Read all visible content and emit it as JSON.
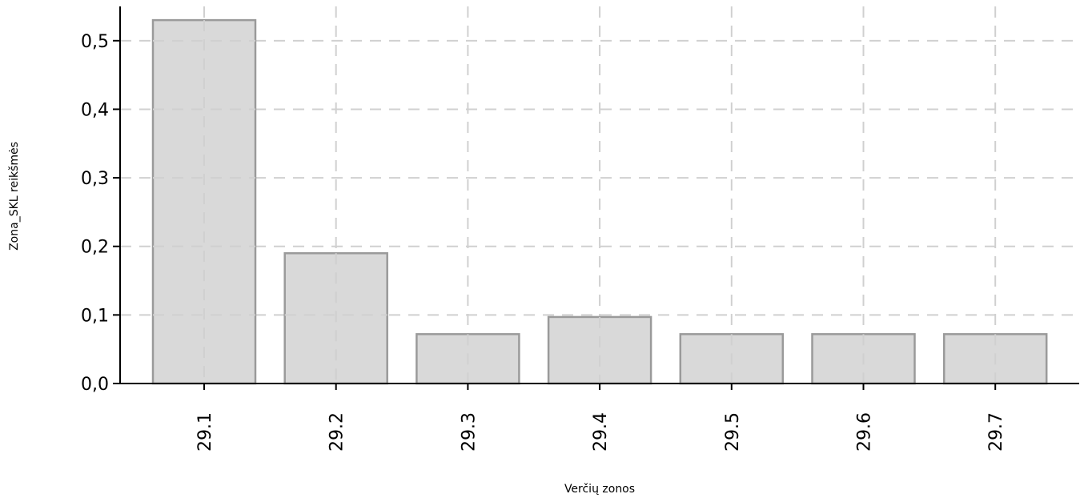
{
  "chart_data": {
    "type": "bar",
    "title": "",
    "xlabel": "Verčių zonos",
    "ylabel": "Zona_SKL reikšmės",
    "categories": [
      "29.1",
      "29.2",
      "29.3",
      "29.4",
      "29.5",
      "29.6",
      "29.7"
    ],
    "values": [
      0.53,
      0.19,
      0.072,
      0.097,
      0.072,
      0.072,
      0.072
    ],
    "ylim": [
      0,
      0.55
    ],
    "yticks": [
      "0,0",
      "0,1",
      "0,2",
      "0,3",
      "0,4",
      "0,5"
    ],
    "grid": true,
    "legend": false,
    "bar_color": "#d9d9d9",
    "bar_edge_color": "#9a9a9a",
    "grid_color": "#d0d0d0"
  }
}
